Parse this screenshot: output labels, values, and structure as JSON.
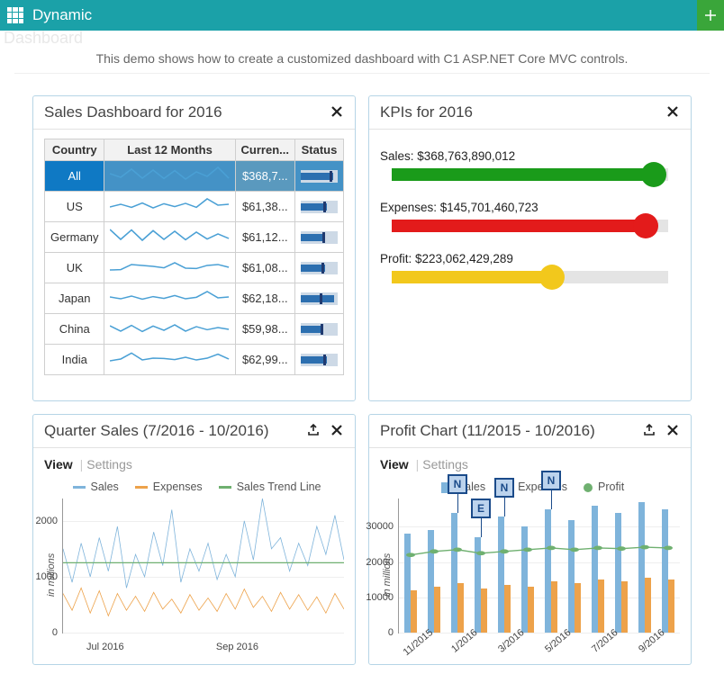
{
  "topbar": {
    "title": "Dynamic",
    "ghost": "Dashboard"
  },
  "intro": "This demo shows how to create a customized dashboard with C1 ASP.NET Core MVC controls.",
  "panels": {
    "sales": {
      "title": "Sales Dashboard for 2016",
      "columns": [
        "Country",
        "Last 12 Months",
        "Curren...",
        "Status"
      ],
      "columns_full": [
        "Country",
        "Last 12 Months",
        "Current",
        "Status"
      ],
      "rows": [
        {
          "country": "All",
          "selected": true,
          "current": "$368,7...",
          "spark": [
            55,
            35,
            80,
            30,
            75,
            28,
            72,
            25,
            65,
            40,
            90,
            30
          ],
          "bullet_fill": 0.88,
          "bullet_mark": 0.78
        },
        {
          "country": "US",
          "selected": false,
          "current": "$61,38...",
          "spark": [
            40,
            55,
            38,
            62,
            35,
            58,
            42,
            60,
            38,
            85,
            50,
            55
          ],
          "bullet_fill": 0.7,
          "bullet_mark": 0.62
        },
        {
          "country": "Germany",
          "selected": false,
          "current": "$61,12...",
          "spark": [
            85,
            30,
            82,
            25,
            78,
            30,
            75,
            28,
            70,
            32,
            60,
            35
          ],
          "bullet_fill": 0.66,
          "bullet_mark": 0.58
        },
        {
          "country": "UK",
          "selected": false,
          "current": "$61,08...",
          "spark": [
            30,
            32,
            60,
            55,
            50,
            42,
            70,
            40,
            38,
            55,
            60,
            45
          ],
          "bullet_fill": 0.65,
          "bullet_mark": 0.55
        },
        {
          "country": "Japan",
          "selected": false,
          "current": "$62,18...",
          "spark": [
            50,
            40,
            55,
            38,
            52,
            42,
            58,
            40,
            48,
            80,
            45,
            50
          ],
          "bullet_fill": 0.9,
          "bullet_mark": 0.5
        },
        {
          "country": "China",
          "selected": false,
          "current": "$59,98...",
          "spark": [
            60,
            30,
            62,
            28,
            58,
            35,
            65,
            30,
            55,
            38,
            50,
            40
          ],
          "bullet_fill": 0.62,
          "bullet_mark": 0.54
        },
        {
          "country": "India",
          "selected": false,
          "current": "$62,99...",
          "spark": [
            35,
            45,
            78,
            40,
            50,
            48,
            42,
            55,
            40,
            50,
            72,
            45
          ],
          "bullet_fill": 0.7,
          "bullet_mark": 0.6
        }
      ],
      "spark_color": "#4aa0d5",
      "bullet_colors": {
        "bg": "#cdd9e6",
        "fill": "#2c6fb0",
        "mark": "#203a70"
      }
    },
    "kpi": {
      "title": "KPIs for 2016",
      "items": [
        {
          "label": "Sales: $368,763,890,012",
          "value": 0.95,
          "color": "#1a9b1a"
        },
        {
          "label": "Expenses: $145,701,460,723",
          "value": 0.92,
          "color": "#e31b1b"
        },
        {
          "label": "Profit: $223,062,429,289",
          "value": 0.58,
          "color": "#f2c81c"
        }
      ],
      "track_color": "#e4e4e4"
    },
    "quarter": {
      "title": "Quarter Sales (7/2016 - 10/2016)",
      "subnav": {
        "active": "View",
        "other": "Settings"
      },
      "legend": [
        {
          "label": "Sales",
          "color": "#7fb4db",
          "shape": "line"
        },
        {
          "label": "Expenses",
          "color": "#eda24a",
          "shape": "line"
        },
        {
          "label": "Sales Trend Line",
          "color": "#6fb070",
          "shape": "line"
        }
      ],
      "ylabel": "in millions",
      "yticks": [
        0,
        1000,
        2000
      ],
      "ylim": [
        0,
        2400
      ],
      "xticks": [
        {
          "label": "Jul 2016",
          "pos": 0.15
        },
        {
          "label": "Sep 2016",
          "pos": 0.62
        }
      ],
      "trend": 1250,
      "series": {
        "sales": [
          1500,
          900,
          1600,
          1000,
          1700,
          1100,
          1900,
          800,
          1400,
          1000,
          1800,
          1200,
          2200,
          900,
          1500,
          1100,
          1600,
          950,
          1400,
          1000,
          2000,
          1300,
          2400,
          1500,
          1700,
          1100,
          1600,
          1200,
          1900,
          1400,
          2100,
          1300
        ],
        "expenses": [
          700,
          400,
          800,
          350,
          750,
          300,
          700,
          400,
          650,
          380,
          720,
          420,
          600,
          350,
          680,
          400,
          620,
          380,
          700,
          420,
          780,
          450,
          650,
          380,
          720,
          420,
          680,
          400,
          640,
          350,
          700,
          420
        ]
      }
    },
    "profit": {
      "title": "Profit Chart (11/2015 - 10/2016)",
      "subnav": {
        "active": "View",
        "other": "Settings"
      },
      "legend": [
        {
          "label": "Sales",
          "color": "#7fb4db",
          "shape": "sq"
        },
        {
          "label": "Expenses",
          "color": "#eda24a",
          "shape": "sq"
        },
        {
          "label": "Profit",
          "color": "#6fb070",
          "shape": "dot"
        }
      ],
      "ylabel": "in millions",
      "yticks": [
        0,
        10000,
        20000,
        30000
      ],
      "ylim": [
        0,
        38000
      ],
      "xticks": [
        "11/2015",
        "1/2016",
        "3/2016",
        "5/2016",
        "7/2016",
        "9/2016"
      ],
      "bars": [
        {
          "s": 28000,
          "e": 12000
        },
        {
          "s": 29000,
          "e": 13000
        },
        {
          "s": 34000,
          "e": 14000
        },
        {
          "s": 27000,
          "e": 12500
        },
        {
          "s": 33000,
          "e": 13500
        },
        {
          "s": 30000,
          "e": 13000
        },
        {
          "s": 35000,
          "e": 14500
        },
        {
          "s": 32000,
          "e": 14000
        },
        {
          "s": 36000,
          "e": 15000
        },
        {
          "s": 34000,
          "e": 14500
        },
        {
          "s": 37000,
          "e": 15500
        },
        {
          "s": 35000,
          "e": 15000
        }
      ],
      "profit_line": [
        22000,
        23000,
        23500,
        22500,
        23000,
        23500,
        24000,
        23500,
        24000,
        23800,
        24200,
        24000
      ],
      "callouts": [
        {
          "txt": "N",
          "bar": 2
        },
        {
          "txt": "E",
          "bar": 3
        },
        {
          "txt": "N",
          "bar": 4
        },
        {
          "txt": "N",
          "bar": 6
        }
      ]
    }
  }
}
